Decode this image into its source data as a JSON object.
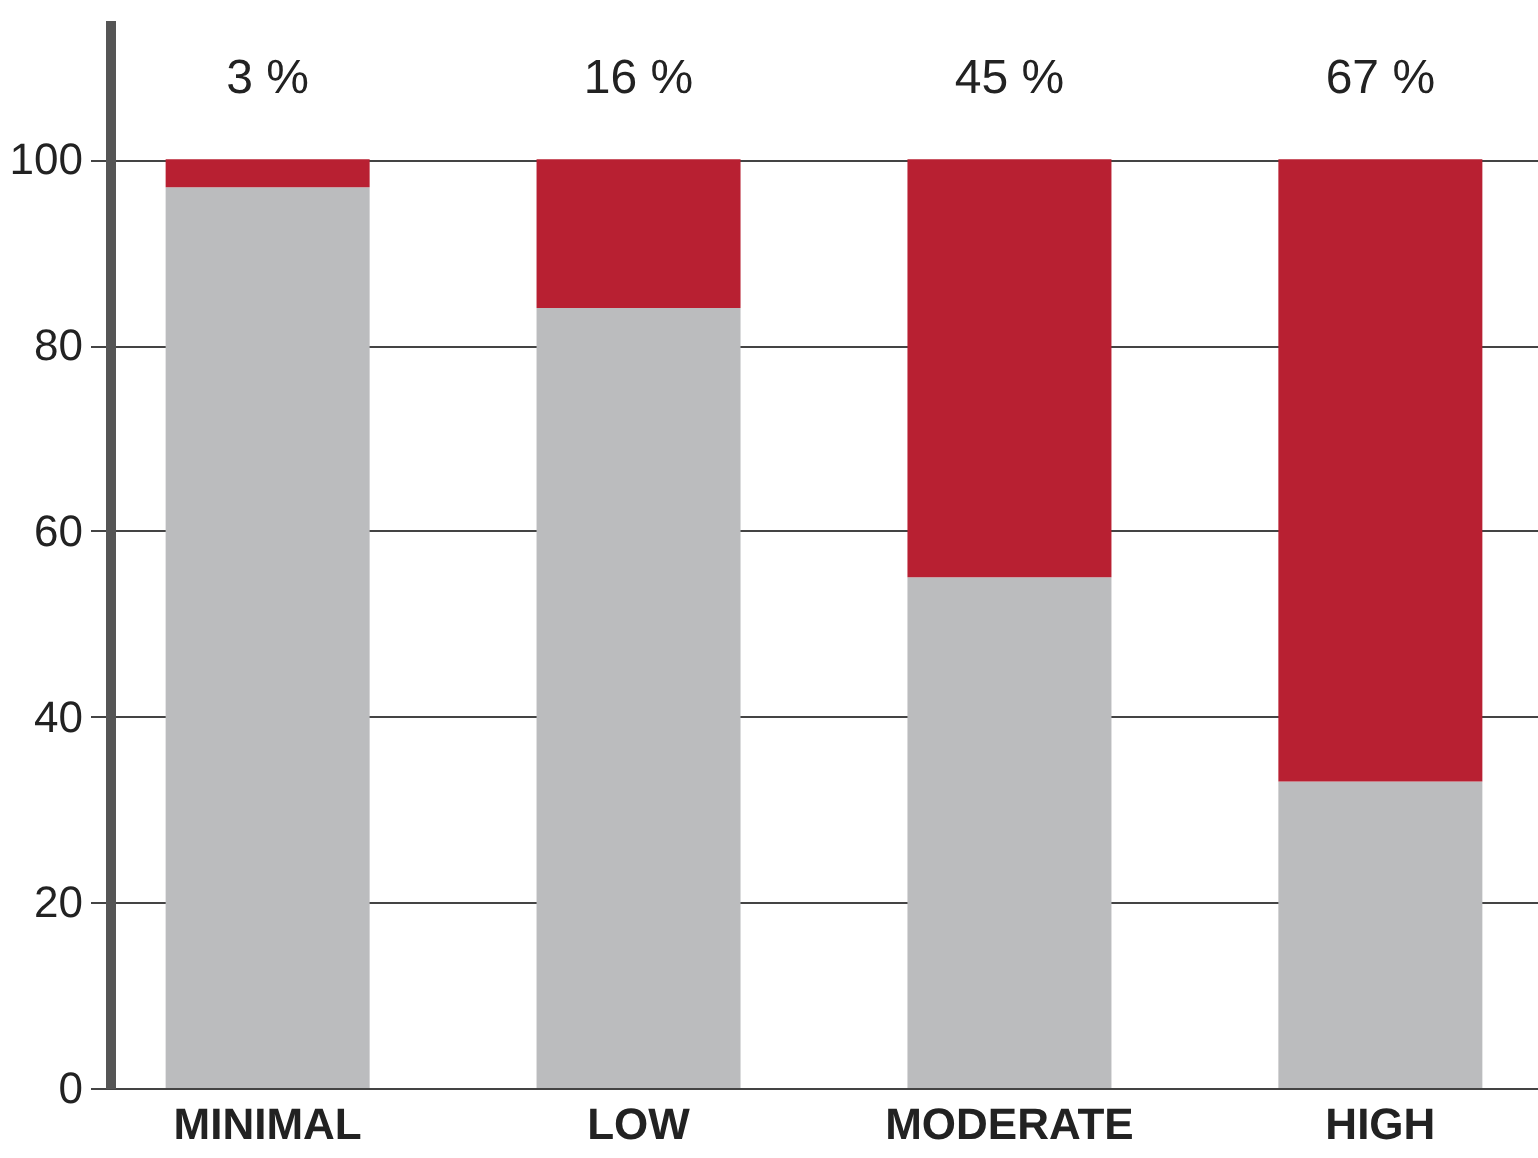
{
  "chart_data": {
    "type": "bar",
    "stacked": true,
    "categories": [
      "MINIMAL",
      "LOW",
      "MODERATE",
      "HIGH"
    ],
    "series": [
      {
        "color": "#bbbcbe",
        "values": [
          97,
          84,
          55,
          33
        ]
      },
      {
        "color": "#b82032",
        "values": [
          3,
          16,
          45,
          67
        ],
        "value_labels": [
          "3 %",
          "16 %",
          "45 %",
          "67 %"
        ]
      }
    ],
    "ylim": [
      0,
      115
    ],
    "yticks": [
      0,
      20,
      40,
      60,
      80,
      100
    ],
    "grid": "y"
  }
}
